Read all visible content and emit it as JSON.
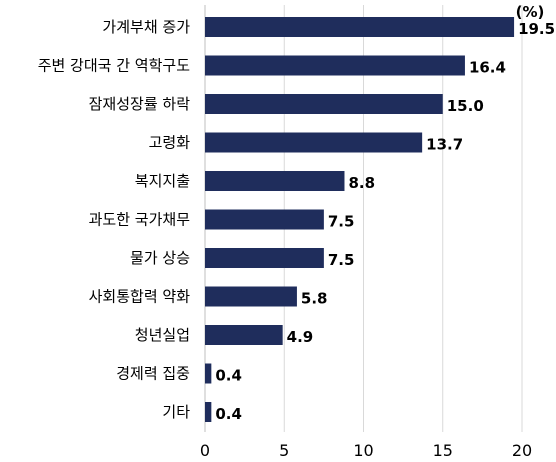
{
  "chart_data": {
    "type": "bar",
    "orientation": "horizontal",
    "unit": "(%)",
    "categories": [
      "가계부채 증가",
      "주변 강대국 간 역학구도",
      "잠재성장률 하락",
      "고령화",
      "복지지출",
      "과도한 국가채무",
      "물가 상승",
      "사회통합력 약화",
      "청년실업",
      "경제력 집중",
      "기타"
    ],
    "values": [
      19.5,
      16.4,
      15.0,
      13.7,
      8.8,
      7.5,
      7.5,
      5.8,
      4.9,
      0.4,
      0.4
    ],
    "value_labels": [
      "19.5",
      "16.4",
      "15.0",
      "13.7",
      "8.8",
      "7.5",
      "7.5",
      "5.8",
      "4.9",
      "0.4",
      "0.4"
    ],
    "xlim": [
      0,
      20
    ],
    "xticks": [
      "0",
      "5",
      "10",
      "15",
      "20"
    ],
    "grid": "vertical",
    "bar_color": "#1f2d5c"
  }
}
